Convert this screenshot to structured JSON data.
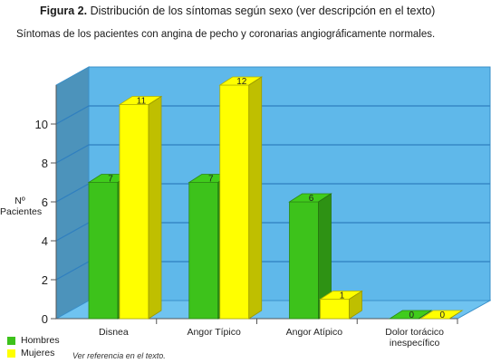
{
  "figure": {
    "number": "Figura 2.",
    "title": "Distribución de los síntomas según sexo (ver descripción en el texto)"
  },
  "footnote": "Ver referencia en el texto.",
  "colors": {
    "hombres": "#3dc21b",
    "mujeres": "#ffff00",
    "wall": "#5fb8ea",
    "floor": "#6fc3f0"
  },
  "chart_data": {
    "type": "bar",
    "title": "Síntomas de los pacientes con angina de pecho y coronarias angiográficamente normales.",
    "ylabel": "Nº Pacientes",
    "xlabel": "",
    "categories": [
      "Disnea",
      "Angor Típico",
      "Angor Atípico",
      "Dolor torácico inespecífico"
    ],
    "series": [
      {
        "name": "Hombres",
        "values": [
          7,
          7,
          6,
          0
        ]
      },
      {
        "name": "Mujeres",
        "values": [
          11,
          12,
          1,
          0
        ]
      }
    ],
    "yticks": [
      0,
      2,
      4,
      6,
      8,
      10
    ],
    "ylim": [
      0,
      12
    ],
    "grid": true,
    "legend": "bottom-left"
  }
}
